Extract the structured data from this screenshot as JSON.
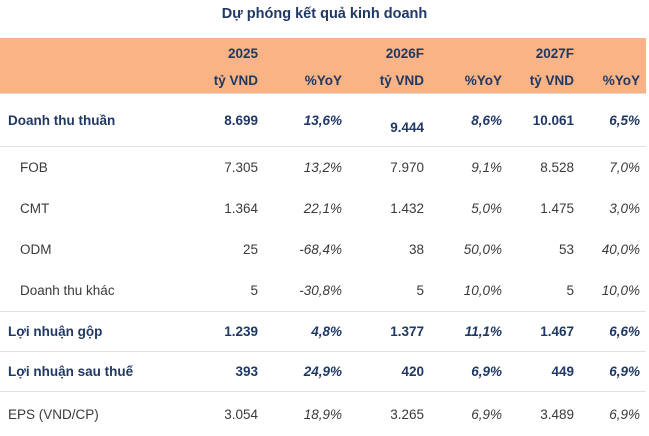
{
  "title": "Dự phóng kết quả kinh doanh",
  "header": {
    "years": [
      "2025",
      "2026F",
      "2027F"
    ],
    "unit_value": "tỷ VND",
    "unit_pct": "%YoY"
  },
  "rows": [
    {
      "label": "Doanh thu thuần",
      "v2025": "8.699",
      "p2025": "13,6%",
      "v2026": "9.444",
      "p2026": "8,6%",
      "v2027": "10.061",
      "p2027": "6,5%"
    },
    {
      "label": "FOB",
      "v2025": "7.305",
      "p2025": "13,2%",
      "v2026": "7.970",
      "p2026": "9,1%",
      "v2027": "8.528",
      "p2027": "7,0%"
    },
    {
      "label": "CMT",
      "v2025": "1.364",
      "p2025": "22,1%",
      "v2026": "1.432",
      "p2026": "5,0%",
      "v2027": "1.475",
      "p2027": "3,0%"
    },
    {
      "label": "ODM",
      "v2025": "25",
      "p2025": "-68,4%",
      "v2026": "38",
      "p2026": "50,0%",
      "v2027": "53",
      "p2027": "40,0%"
    },
    {
      "label": "Doanh thu khác",
      "v2025": "5",
      "p2025": "-30,8%",
      "v2026": "5",
      "p2026": "10,0%",
      "v2027": "5",
      "p2027": "10,0%"
    },
    {
      "label": "Lợi nhuận gộp",
      "v2025": "1.239",
      "p2025": "4,8%",
      "v2026": "1.377",
      "p2026": "11,1%",
      "v2027": "1.467",
      "p2027": "6,6%"
    },
    {
      "label": "Lợi nhuận sau thuế",
      "v2025": "393",
      "p2025": "24,9%",
      "v2026": "420",
      "p2026": "6,9%",
      "v2027": "449",
      "p2027": "6,9%"
    },
    {
      "label": "EPS (VND/CP)",
      "v2025": "3.054",
      "p2025": "18,9%",
      "v2026": "3.265",
      "p2026": "6,9%",
      "v2027": "3.489",
      "p2027": "6,9%"
    }
  ]
}
